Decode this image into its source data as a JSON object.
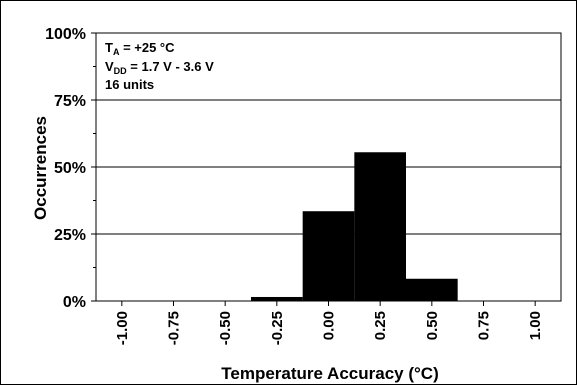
{
  "chart_data": {
    "type": "bar",
    "categories": [
      "-1.00",
      "-0.75",
      "-0.50",
      "-0.25",
      "0.00",
      "0.25",
      "0.50",
      "0.75",
      "1.00"
    ],
    "bins": [
      {
        "from": -0.375,
        "to": -0.125,
        "value": 1.5
      },
      {
        "from": -0.125,
        "to": 0.125,
        "value": 33.5
      },
      {
        "from": 0.125,
        "to": 0.375,
        "value": 55.5
      },
      {
        "from": 0.375,
        "to": 0.625,
        "value": 8.3
      }
    ],
    "xlabel": "Temperature Accuracy (°C)",
    "ylabel": "Occurrences",
    "ylim": [
      0,
      100
    ],
    "xlim": [
      -1.125,
      1.125
    ],
    "yticks": [
      "0%",
      "25%",
      "50%",
      "75%",
      "100%"
    ],
    "ytick_values": [
      0,
      25,
      50,
      75,
      100
    ],
    "grid": true,
    "bar_color": "#000000",
    "annotations": {
      "ta_main": "T",
      "ta_sub": "A",
      "ta_rest": " = +25 °C",
      "vdd_main": "V",
      "vdd_sub": "DD",
      "vdd_rest": " = 1.7 V - 3.6 V",
      "units": "16 units"
    }
  }
}
